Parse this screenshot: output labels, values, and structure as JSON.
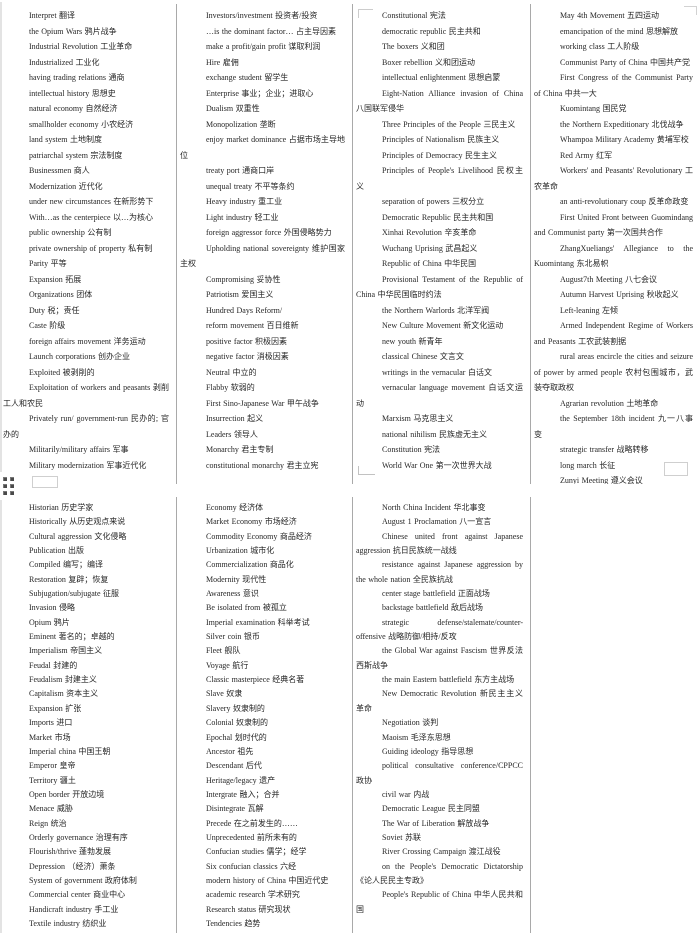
{
  "colors": {
    "separator": "#a9a9a9",
    "text": "#262626",
    "page_background": "#ffffff",
    "drag_handle": "#4a4a4a"
  },
  "icons": {
    "drag_handle": "drag-dots-grid"
  },
  "document": {
    "pages": [
      {
        "name": "page-1",
        "columns": [
          {
            "entries": [
              "Interpret 翻译",
              "the Opium Wars 鸦片战争",
              "Industrial Revolution 工业革命",
              "Industrialized 工业化",
              "having trading relations 通商",
              "intellectual history 思想史",
              "natural economy 自然经济",
              "smallholder economy 小农经济",
              "land system 土地制度",
              "patriarchal system 宗法制度",
              "Businessmen 商人",
              "Modernization 近代化",
              "under new circumstances 在新形势下",
              "With…as the centerpiece 以…为核心",
              "public ownership 公有制",
              "private ownership of property 私有制",
              "Parity 平等",
              "Expansion 拓展",
              "Organizations 团体",
              "Duty 税；责任",
              "Caste 阶级",
              "foreign affairs movement 洋务运动",
              "Launch corporations 创办企业",
              "Exploited 被剥削的",
              "Exploitation of workers and peasants 剥削工人和农民",
              "Privately run/ government-run 民办的; 官办的",
              "Militarily/military affairs 军事",
              "Military modernization 军事近代化"
            ]
          },
          {
            "entries": [
              "Investors/investment 投资者/投资",
              "…is the dominant factor… 占主导因素",
              "make a profit/gain profit 谋取利润",
              "Hire 雇佣",
              "exchange student 留学生",
              "Enterprise 事业；企业；进取心",
              "Dualism 双重性",
              "Monopolization 垄断",
              "enjoy market dominance 占据市场主导地位",
              "treaty port 通商口岸",
              "unequal treaty 不平等条约",
              "Heavy industry 重工业",
              "Light industry 轻工业",
              "foreign aggressor force 外国侵略势力",
              "Upholding national sovereignty 维护国家主权",
              "Compromising 妥协性",
              "Patriotism 爱国主义",
              "Hundred Days Reform/",
              "reform movement 百日维新",
              "positive factor 积极因素",
              "negative factor 消极因素",
              "Neutral 中立的",
              "Flabby 软弱的",
              "First Sino-Japanese War 甲午战争",
              "Insurrection 起义",
              "Leaders 领导人",
              "Monarchy 君主专制",
              "constitutional monarchy 君主立宪"
            ]
          },
          {
            "entries": [
              "Constitutional 宪法",
              "democratic republic 民主共和",
              "The boxers 义和团",
              "Boxer rebellion 义和团运动",
              "intellectual enlightenment 思想启蒙",
              "Eight-Nation Alliance invasion of China 八国联军侵华",
              "Three Principles of the People 三民主义",
              "Principles of Nationalism 民族主义",
              "Principles of Democracy 民生主义",
              "Principles of People's Livelihood 民权主义",
              "separation of powers 三权分立",
              "Democratic Republic 民主共和国",
              "Xinhai Revolution 辛亥革命",
              "Wuchang Uprising 武昌起义",
              "Republic of China 中华民国",
              "Provisional Testament of the Republic of China 中华民国临时约法",
              "the Northern Warlords 北洋军阀",
              "New Culture Movement 新文化运动",
              "new youth 新青年",
              "classical Chinese 文言文",
              "writings in the vernacular 白话文",
              "vernacular language movement 白话文运动",
              "Marxism 马克思主义",
              "national nihilism 民族虚无主义",
              "Constitution 宪法",
              "World War One 第一次世界大战"
            ]
          },
          {
            "entries": [
              "May 4th Movement 五四运动",
              "emancipation of the mind 思想解放",
              "working class 工人阶级",
              "Communist Party of China 中国共产党",
              "First Congress of the Communist Party of China 中共一大",
              "Kuomintang 国民党",
              "the Northern Expeditionary 北伐战争",
              "Whampoa Military Academy 黄埔军校",
              "Red Army 红军",
              "Workers' and Peasants' Revolutionary 工农革命",
              "an anti-revolutionary coup 反革命政变",
              "First United Front between Guomindang and Communist party 第一次国共合作",
              "ZhangXueliangs' Allegiance to the Kuomintang 东北易帜",
              "August7th Meeting 八七会议",
              "Autumn Harvest Uprising 秋收起义",
              "Left-leaning 左倾",
              "Armed Independent Regime of Workers and Peasants 工农武装割据",
              "rural areas encircle the cities and seizure of power by armed people 农村包围城市，武装夺取政权",
              "Agrarian revolution 土地革命",
              "the September 18th incident 九一八事变",
              "strategic transfer 战略转移",
              "long march 长征",
              "Zunyi Meeting 遵义会议"
            ]
          }
        ]
      },
      {
        "name": "page-2",
        "columns": [
          {
            "entries": [
              "Historian 历史学家",
              "Historically 从历史观点来说",
              "Cultural aggression 文化侵略",
              "Publication 出版",
              "Compiled 编写；编译",
              "Restoration 复辟；恢复",
              "Subjugation/subjugate 征服",
              "Invasion 侵略",
              "Opium 鸦片",
              "Eminent 著名的；卓越的",
              "Imperialism 帝国主义",
              "Feudal 封建的",
              "Feudalism 封建主义",
              "Capitalism 资本主义",
              "Expansion 扩张",
              "Imports 进口",
              "Market 市场",
              "Imperial china 中国王朝",
              "Emperor 皇帝",
              "Territory 疆土",
              "Open border 开放边境",
              "Menace 威胁",
              "Reign 统治",
              "Orderly governance 治理有序",
              "Flourish/thrive 蓬勃发展",
              "Depression （经济）萧条",
              "System of government 政府体制",
              "Commercial center 商业中心",
              "Handicraft industry 手工业",
              "Textile industry 纺织业"
            ]
          },
          {
            "entries": [
              "Economy 经济体",
              "Market Economy 市场经济",
              "Commodity Economy 商品经济",
              "Urbanization 城市化",
              "Commercialization 商品化",
              "Modernity 现代性",
              "Awareness 意识",
              "Be isolated from 被孤立",
              "Imperial examination 科举考试",
              "Silver coin 银币",
              "Fleet 舰队",
              "Voyage 航行",
              "Classic masterpiece 经典名著",
              "Slave 奴隶",
              "Slavery 奴隶制的",
              "Colonial 奴隶制的",
              "Epochal 划时代的",
              "Ancestor 祖先",
              "Descendant 后代",
              "Heritage/legacy 遗产",
              "Intergrate 融入；合并",
              "Disintegrate 瓦解",
              "Precede 在之前发生的……",
              "Unprecedented 前所未有的",
              "Confucian studies 儒学；经学",
              "Six confucian classics 六经",
              "modern history of China 中国近代史",
              "academic research 学术研究",
              "Research status 研究现状",
              "Tendencies 趋势"
            ]
          },
          {
            "entries": [
              "North China Incident 华北事变",
              "August 1 Proclamation 八一宣言",
              "Chinese united front against Japanese aggression 抗日民族统一战线",
              "resistance against Japanese aggression by the whole nation 全民族抗战",
              "center stage battlefield 正面战场",
              "backstage battlefield 敌后战场",
              "strategic defense/stalemate/counter-offensive 战略防御/相持/反攻",
              "the Global War against Fascism 世界反法西斯战争",
              "the main Eastern battlefield 东方主战场",
              "New Democratic Revolution 新民主主义革命",
              "Negotiation 谈判",
              "Maoism 毛泽东思想",
              "Guiding ideology 指导思想",
              "political consultative conference/CPPCC 政协",
              "civil war 内战",
              "Democratic League 民主同盟",
              "The War of Liberation 解放战争",
              "Soviet 苏联",
              "River Crossing Campaign 渡江战役",
              "on the People's Democratic Dictatorship 《论人民民主专政》",
              "People's Republic of China 中华人民共和国"
            ]
          },
          {
            "entries": []
          }
        ]
      }
    ]
  }
}
